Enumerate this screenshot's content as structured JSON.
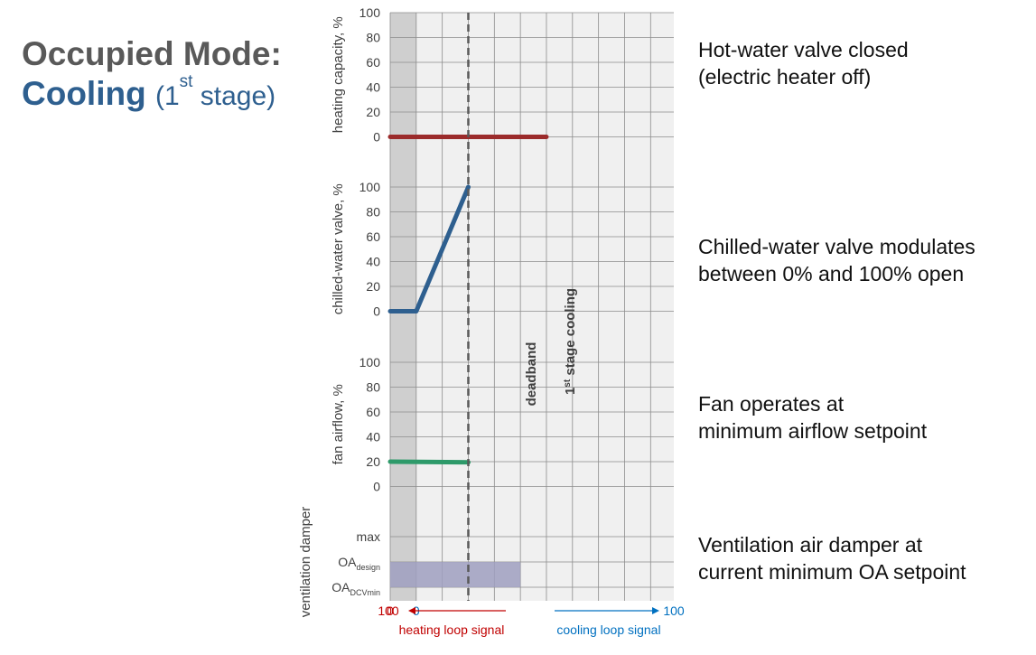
{
  "title": {
    "line1": "Occupied Mode:",
    "line2_main": "Cooling",
    "line2_open": "(1",
    "line2_sup": "st",
    "line2_close": " stage)"
  },
  "colors": {
    "title_gray": "#595959",
    "title_blue": "#2e5f8f",
    "heating": "#9b2b2b",
    "chilled": "#2e5f8f",
    "fan": "#2e9a6a",
    "damper": "#9f9fbf",
    "heating_signal": "#c00000",
    "cooling_signal": "#0070c0",
    "deadband": "#cfcfcf",
    "grid_bg": "#f0f0f0"
  },
  "descriptions": [
    {
      "lines": [
        "Hot-water valve closed",
        "(electric heater off)"
      ]
    },
    {
      "lines": [
        "Chilled-water valve modulates",
        "between 0% and 100% open"
      ]
    },
    {
      "lines": [
        "Fan operates at",
        "minimum airflow setpoint"
      ]
    },
    {
      "lines": [
        "Ventilation air damper at",
        "current minimum OA setpoint"
      ]
    }
  ],
  "annotations": {
    "deadband": "deadband",
    "stage_prefix": "1",
    "stage_sup": "st",
    "stage_suffix": " stage cooling"
  },
  "chart_data": {
    "type": "line",
    "x_axis": {
      "heating_label": "heating loop signal",
      "cooling_label": "cooling loop signal",
      "heating_ticks": [
        "100",
        "0"
      ],
      "cooling_ticks": [
        "0",
        "100"
      ],
      "heating_range": [
        100,
        0
      ],
      "cooling_range": [
        0,
        100
      ],
      "columns": 6
    },
    "deadband_columns": [
      0,
      1
    ],
    "stage_boundary_column": 3,
    "panels": [
      {
        "ylabel": "heating capacity, %",
        "yticks": [
          "100",
          "80",
          "60",
          "40",
          "20",
          "0"
        ],
        "ylim": [
          0,
          100
        ],
        "series": [
          {
            "points": [
              [
                0,
                0
              ],
              [
                6,
                0
              ]
            ],
            "colorKey": "heating"
          }
        ]
      },
      {
        "ylabel": "chilled-water valve, %",
        "yticks": [
          "100",
          "80",
          "60",
          "40",
          "20",
          "0"
        ],
        "ylim": [
          0,
          100
        ],
        "series": [
          {
            "points": [
              [
                0,
                0
              ],
              [
                1,
                0
              ],
              [
                3,
                100
              ]
            ],
            "colorKey": "chilled"
          }
        ]
      },
      {
        "ylabel": "fan airflow, %",
        "yticks": [
          "100",
          "80",
          "60",
          "40",
          "20",
          "0"
        ],
        "ylim": [
          0,
          100
        ],
        "series": [
          {
            "points": [
              [
                0,
                20
              ],
              [
                3,
                19.5
              ]
            ],
            "colorKey": "fan"
          }
        ]
      },
      {
        "ylabel": "ventilation damper",
        "levels": [
          {
            "main": "max",
            "sub": ""
          },
          {
            "main": "OA",
            "sub": "design"
          },
          {
            "main": "OA",
            "sub": "DCVmin"
          }
        ],
        "band": {
          "from_column": 0,
          "to_column": 5,
          "from_level": "OAdesign",
          "to_level": "OADCVmin"
        }
      }
    ]
  }
}
